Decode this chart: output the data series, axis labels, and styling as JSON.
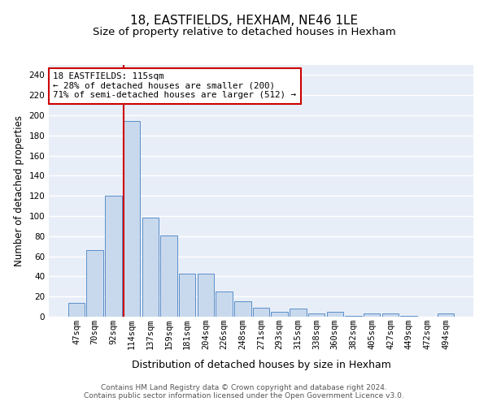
{
  "title": "18, EASTFIELDS, HEXHAM, NE46 1LE",
  "subtitle": "Size of property relative to detached houses in Hexham",
  "xlabel": "Distribution of detached houses by size in Hexham",
  "ylabel": "Number of detached properties",
  "categories": [
    "47sqm",
    "70sqm",
    "92sqm",
    "114sqm",
    "137sqm",
    "159sqm",
    "181sqm",
    "204sqm",
    "226sqm",
    "248sqm",
    "271sqm",
    "293sqm",
    "315sqm",
    "338sqm",
    "360sqm",
    "382sqm",
    "405sqm",
    "427sqm",
    "449sqm",
    "472sqm",
    "494sqm"
  ],
  "values": [
    14,
    66,
    120,
    194,
    98,
    81,
    43,
    43,
    25,
    15,
    9,
    5,
    8,
    3,
    5,
    1,
    3,
    3,
    1,
    0,
    3
  ],
  "bar_color": "#c9d9ed",
  "bar_edge_color": "#5b8fc9",
  "vline_bar_index": 3,
  "vline_color": "#cc0000",
  "annotation_text": "18 EASTFIELDS: 115sqm\n← 28% of detached houses are smaller (200)\n71% of semi-detached houses are larger (512) →",
  "annotation_box_color": "#ffffff",
  "annotation_box_edge": "#cc0000",
  "ylim": [
    0,
    250
  ],
  "yticks": [
    0,
    20,
    40,
    60,
    80,
    100,
    120,
    140,
    160,
    180,
    200,
    220,
    240
  ],
  "bg_color": "#e8eef8",
  "footer": "Contains HM Land Registry data © Crown copyright and database right 2024.\nContains public sector information licensed under the Open Government Licence v3.0.",
  "title_fontsize": 11,
  "subtitle_fontsize": 9.5,
  "xlabel_fontsize": 9,
  "ylabel_fontsize": 8.5,
  "tick_fontsize": 7.5,
  "footer_fontsize": 6.5
}
